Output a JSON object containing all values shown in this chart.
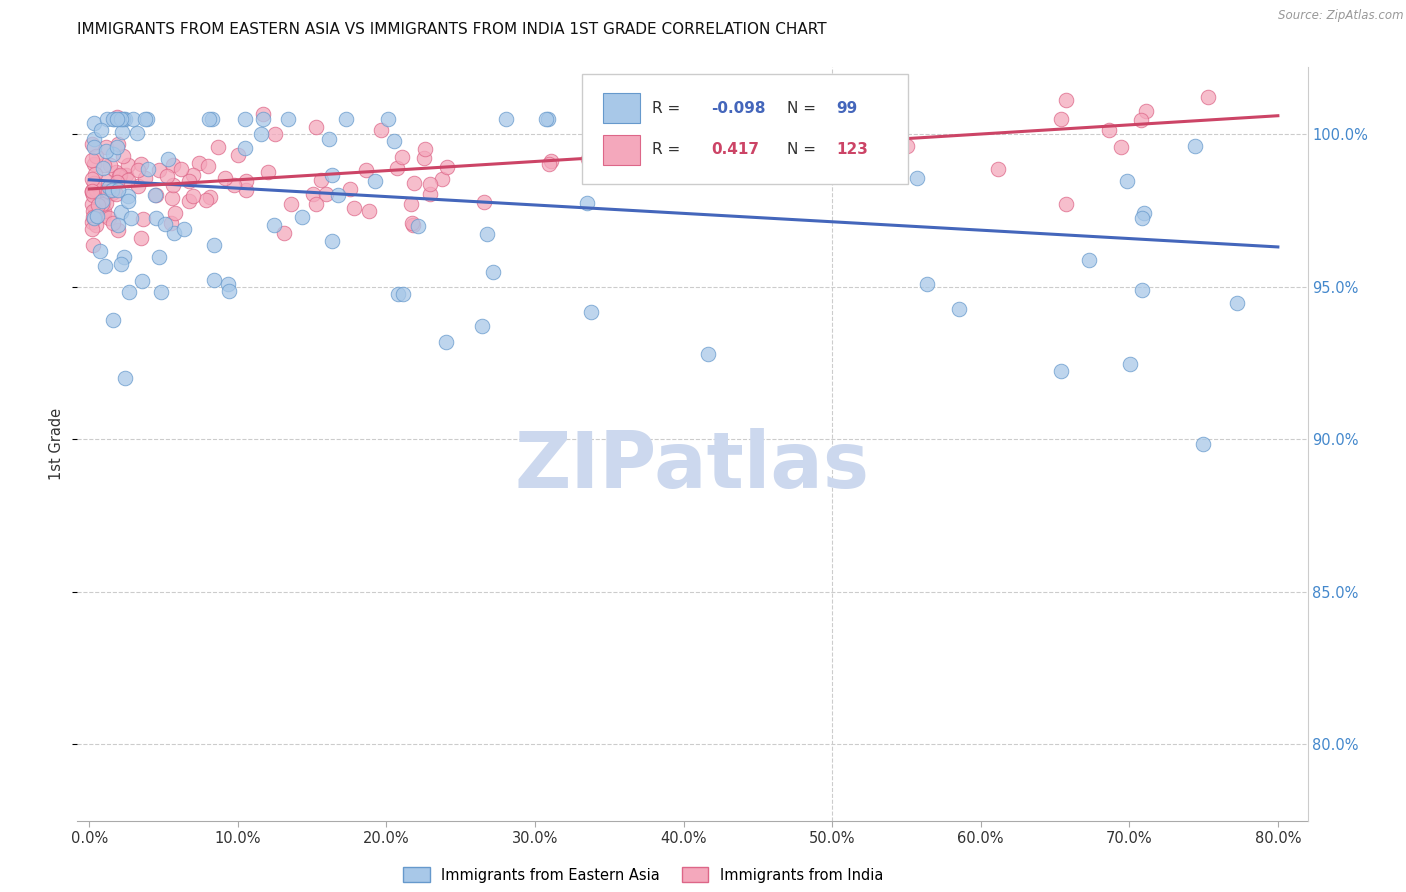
{
  "title": "IMMIGRANTS FROM EASTERN ASIA VS IMMIGRANTS FROM INDIA 1ST GRADE CORRELATION CHART",
  "source": "Source: ZipAtlas.com",
  "ylabel": "1st Grade",
  "x_tick_labels": [
    "0.0%",
    "10.0%",
    "20.0%",
    "30.0%",
    "40.0%",
    "50.0%",
    "60.0%",
    "70.0%",
    "80.0%"
  ],
  "x_tick_values": [
    0.0,
    0.1,
    0.2,
    0.3,
    0.4,
    0.5,
    0.6,
    0.7,
    0.8
  ],
  "y_tick_labels_right": [
    "80.0%",
    "85.0%",
    "90.0%",
    "95.0%",
    "100.0%"
  ],
  "y_tick_values": [
    0.8,
    0.85,
    0.9,
    0.95,
    1.0
  ],
  "ylim": [
    0.775,
    1.022
  ],
  "xlim": [
    -0.008,
    0.82
  ],
  "legend_r_blue": "-0.098",
  "legend_n_blue": "99",
  "legend_r_pink": "0.417",
  "legend_n_pink": "123",
  "blue_color": "#a8c8e8",
  "pink_color": "#f4a8bc",
  "blue_edge_color": "#6699cc",
  "pink_edge_color": "#dd6688",
  "blue_line_color": "#4466bb",
  "pink_line_color": "#cc4466",
  "watermark_color": "#ccd8ee",
  "background_color": "#ffffff",
  "grid_color": "#cccccc",
  "blue_line_y0": 0.985,
  "blue_line_y1": 0.963,
  "pink_line_y0": 0.982,
  "pink_line_y1": 1.006
}
